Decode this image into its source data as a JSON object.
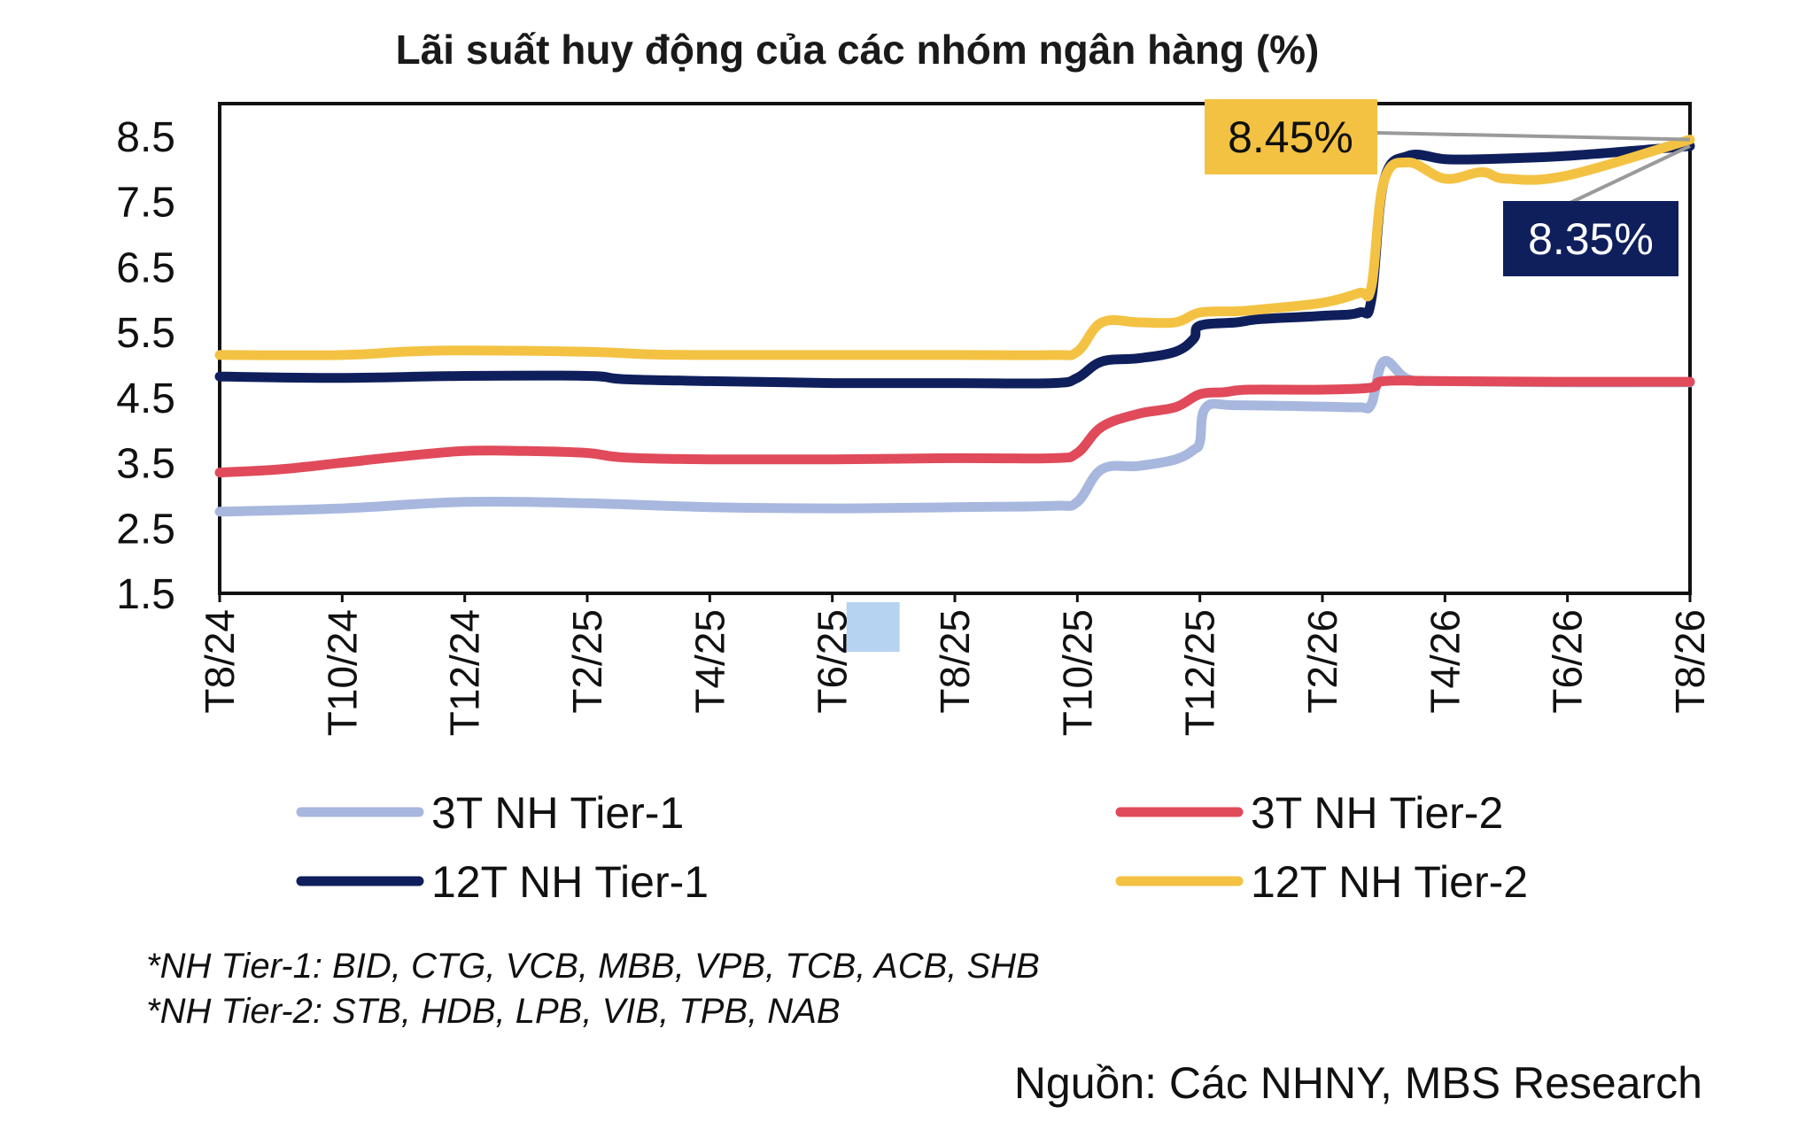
{
  "chart_data": {
    "type": "line",
    "title": "Lãi suất huy động của các nhóm ngân hàng (%)",
    "y_ticks": [
      "8.5",
      "7.5",
      "6.5",
      "5.5",
      "4.5",
      "3.5",
      "2.5",
      "1.5"
    ],
    "ylim": [
      1.5,
      9.0
    ],
    "x_ticks": [
      "T8/24",
      "T10/24",
      "T12/24",
      "T2/25",
      "T4/25",
      "T6/25",
      "T8/25",
      "T10/25",
      "T12/25",
      "T2/26",
      "T4/26",
      "T6/26",
      "T8/26"
    ],
    "x_highlight": "T6/25",
    "grid": false,
    "legend_position": "bottom",
    "series": [
      {
        "name": "3T NH Tier-1",
        "color": "#a7b7de",
        "points": [
          [
            0,
            2.75
          ],
          [
            1,
            2.8
          ],
          [
            2,
            2.9
          ],
          [
            3,
            2.88
          ],
          [
            4,
            2.82
          ],
          [
            5,
            2.8
          ],
          [
            6,
            2.82
          ],
          [
            6.8,
            2.84
          ],
          [
            7,
            2.9
          ],
          [
            7.2,
            3.4
          ],
          [
            7.5,
            3.45
          ],
          [
            7.8,
            3.55
          ],
          [
            7.95,
            3.7
          ],
          [
            8,
            3.82
          ],
          [
            8.05,
            4.35
          ],
          [
            8.3,
            4.38
          ],
          [
            9,
            4.36
          ],
          [
            9.3,
            4.35
          ],
          [
            9.4,
            4.4
          ],
          [
            9.5,
            5.05
          ],
          [
            9.7,
            4.78
          ],
          [
            10,
            4.75
          ],
          [
            11,
            4.73
          ],
          [
            12,
            4.73
          ]
        ]
      },
      {
        "name": "3T NH Tier-2",
        "color": "#e04a5a",
        "points": [
          [
            0,
            3.35
          ],
          [
            0.5,
            3.4
          ],
          [
            1,
            3.5
          ],
          [
            1.5,
            3.6
          ],
          [
            2,
            3.68
          ],
          [
            2.5,
            3.68
          ],
          [
            3,
            3.65
          ],
          [
            3.3,
            3.58
          ],
          [
            4,
            3.55
          ],
          [
            5,
            3.55
          ],
          [
            6,
            3.57
          ],
          [
            6.8,
            3.57
          ],
          [
            7,
            3.65
          ],
          [
            7.2,
            4.05
          ],
          [
            7.5,
            4.25
          ],
          [
            7.8,
            4.35
          ],
          [
            8,
            4.55
          ],
          [
            8.2,
            4.58
          ],
          [
            8.4,
            4.62
          ],
          [
            9,
            4.62
          ],
          [
            9.4,
            4.65
          ],
          [
            9.5,
            4.75
          ],
          [
            10,
            4.75
          ],
          [
            11,
            4.74
          ],
          [
            12,
            4.74
          ]
        ]
      },
      {
        "name": "12T NH Tier-1",
        "color": "#0f1f5c",
        "points": [
          [
            0,
            4.82
          ],
          [
            1,
            4.8
          ],
          [
            2,
            4.83
          ],
          [
            3,
            4.83
          ],
          [
            3.3,
            4.78
          ],
          [
            4,
            4.75
          ],
          [
            5,
            4.72
          ],
          [
            6,
            4.72
          ],
          [
            6.8,
            4.72
          ],
          [
            7,
            4.8
          ],
          [
            7.2,
            5.05
          ],
          [
            7.5,
            5.1
          ],
          [
            7.8,
            5.2
          ],
          [
            7.95,
            5.4
          ],
          [
            8,
            5.6
          ],
          [
            8.3,
            5.65
          ],
          [
            8.5,
            5.7
          ],
          [
            9,
            5.75
          ],
          [
            9.3,
            5.8
          ],
          [
            9.4,
            6.0
          ],
          [
            9.5,
            7.8
          ],
          [
            9.7,
            8.2
          ],
          [
            10,
            8.15
          ],
          [
            10.3,
            8.15
          ],
          [
            11,
            8.2
          ],
          [
            12,
            8.35
          ]
        ]
      },
      {
        "name": "12T NH Tier-2",
        "color": "#f4c242",
        "points": [
          [
            0,
            5.15
          ],
          [
            1,
            5.15
          ],
          [
            1.5,
            5.2
          ],
          [
            2,
            5.22
          ],
          [
            3,
            5.2
          ],
          [
            3.5,
            5.16
          ],
          [
            4,
            5.15
          ],
          [
            5,
            5.15
          ],
          [
            6,
            5.15
          ],
          [
            6.8,
            5.15
          ],
          [
            7,
            5.2
          ],
          [
            7.2,
            5.65
          ],
          [
            7.5,
            5.65
          ],
          [
            7.8,
            5.65
          ],
          [
            8,
            5.8
          ],
          [
            8.3,
            5.82
          ],
          [
            8.5,
            5.85
          ],
          [
            9,
            5.95
          ],
          [
            9.3,
            6.1
          ],
          [
            9.4,
            6.2
          ],
          [
            9.5,
            7.8
          ],
          [
            9.7,
            8.1
          ],
          [
            10,
            7.85
          ],
          [
            10.3,
            7.95
          ],
          [
            10.5,
            7.85
          ],
          [
            11,
            7.9
          ],
          [
            12,
            8.45
          ]
        ]
      }
    ],
    "annotations": [
      {
        "text": "8.45%",
        "series": "12T NH Tier-2",
        "bg": "#f4c242",
        "fg": "#111111"
      },
      {
        "text": "8.35%",
        "series": "12T NH Tier-1",
        "bg": "#0f1f5c",
        "fg": "#ffffff"
      }
    ]
  },
  "notes": [
    "*NH Tier-1: BID, CTG, VCB, MBB, VPB, TCB, ACB, SHB",
    "*NH Tier-2: STB, HDB, LPB, VIB, TPB, NAB"
  ],
  "source": "Nguồn: Các NHNY, MBS Research"
}
